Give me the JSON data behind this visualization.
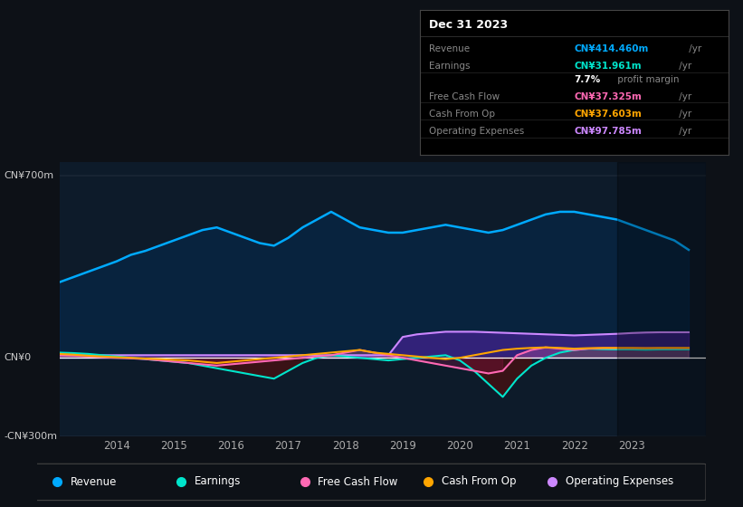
{
  "background_color": "#0d1117",
  "plot_bg_color": "#0d1b2a",
  "ylabel_top": "CN¥700m",
  "ylabel_zero": "CN¥0",
  "ylabel_bottom": "-CN¥300m",
  "ylim": [
    -300,
    750
  ],
  "xlim": [
    2013.0,
    2024.3
  ],
  "x_ticks": [
    2014,
    2015,
    2016,
    2017,
    2018,
    2019,
    2020,
    2021,
    2022,
    2023
  ],
  "info_box": {
    "title": "Dec 31 2023",
    "rows": [
      {
        "label": "Revenue",
        "value": "CN¥414.460m",
        "value_color": "#00aaff",
        "suffix": " /yr"
      },
      {
        "label": "Earnings",
        "value": "CN¥31.961m",
        "value_color": "#00e5cc",
        "suffix": " /yr"
      },
      {
        "label": "",
        "value": "7.7%",
        "value_color": "#ffffff",
        "suffix": " profit margin"
      },
      {
        "label": "Free Cash Flow",
        "value": "CN¥37.325m",
        "value_color": "#ff69b4",
        "suffix": " /yr"
      },
      {
        "label": "Cash From Op",
        "value": "CN¥37.603m",
        "value_color": "#ffa500",
        "suffix": " /yr"
      },
      {
        "label": "Operating Expenses",
        "value": "CN¥97.785m",
        "value_color": "#cc88ff",
        "suffix": " /yr"
      }
    ]
  },
  "legend": [
    {
      "label": "Revenue",
      "color": "#00aaff"
    },
    {
      "label": "Earnings",
      "color": "#00e5cc"
    },
    {
      "label": "Free Cash Flow",
      "color": "#ff69b4"
    },
    {
      "label": "Cash From Op",
      "color": "#ffa500"
    },
    {
      "label": "Operating Expenses",
      "color": "#cc88ff"
    }
  ],
  "series": {
    "years": [
      2013.0,
      2013.25,
      2013.5,
      2013.75,
      2014.0,
      2014.25,
      2014.5,
      2014.75,
      2015.0,
      2015.25,
      2015.5,
      2015.75,
      2016.0,
      2016.25,
      2016.5,
      2016.75,
      2017.0,
      2017.25,
      2017.5,
      2017.75,
      2018.0,
      2018.25,
      2018.5,
      2018.75,
      2019.0,
      2019.25,
      2019.5,
      2019.75,
      2020.0,
      2020.25,
      2020.5,
      2020.75,
      2021.0,
      2021.25,
      2021.5,
      2021.75,
      2022.0,
      2022.25,
      2022.5,
      2022.75,
      2023.0,
      2023.25,
      2023.5,
      2023.75,
      2024.0
    ],
    "revenue": [
      290,
      310,
      330,
      350,
      370,
      395,
      410,
      430,
      450,
      470,
      490,
      500,
      480,
      460,
      440,
      430,
      460,
      500,
      530,
      560,
      530,
      500,
      490,
      480,
      480,
      490,
      500,
      510,
      500,
      490,
      480,
      490,
      510,
      530,
      550,
      560,
      560,
      550,
      540,
      530,
      510,
      490,
      470,
      450,
      414
    ],
    "earnings": [
      20,
      18,
      15,
      10,
      5,
      0,
      -5,
      -10,
      -15,
      -20,
      -30,
      -40,
      -50,
      -60,
      -70,
      -80,
      -50,
      -20,
      0,
      10,
      5,
      0,
      -5,
      -10,
      -5,
      0,
      5,
      10,
      -10,
      -50,
      -100,
      -150,
      -80,
      -30,
      0,
      20,
      30,
      35,
      33,
      32,
      32,
      31,
      32,
      32,
      32
    ],
    "free_cash_flow": [
      10,
      8,
      5,
      2,
      0,
      -2,
      -5,
      -10,
      -15,
      -20,
      -25,
      -30,
      -25,
      -20,
      -15,
      -10,
      -5,
      0,
      5,
      10,
      20,
      30,
      20,
      10,
      0,
      -10,
      -20,
      -30,
      -40,
      -50,
      -60,
      -50,
      10,
      30,
      40,
      35,
      30,
      35,
      37,
      37,
      37,
      37,
      37,
      37,
      37
    ],
    "cash_from_op": [
      15,
      12,
      8,
      5,
      2,
      0,
      -3,
      -5,
      -8,
      -10,
      -15,
      -20,
      -15,
      -10,
      -5,
      0,
      5,
      10,
      15,
      20,
      25,
      30,
      20,
      15,
      10,
      5,
      0,
      -5,
      0,
      10,
      20,
      30,
      35,
      38,
      40,
      38,
      35,
      37,
      38,
      38,
      38,
      37,
      38,
      38,
      38
    ],
    "operating_expenses": [
      10,
      10,
      10,
      10,
      10,
      10,
      10,
      10,
      10,
      10,
      10,
      10,
      10,
      10,
      10,
      10,
      10,
      10,
      10,
      10,
      10,
      10,
      10,
      10,
      80,
      90,
      95,
      100,
      100,
      100,
      98,
      96,
      94,
      92,
      90,
      88,
      86,
      88,
      90,
      92,
      95,
      97,
      98,
      98,
      98
    ]
  }
}
